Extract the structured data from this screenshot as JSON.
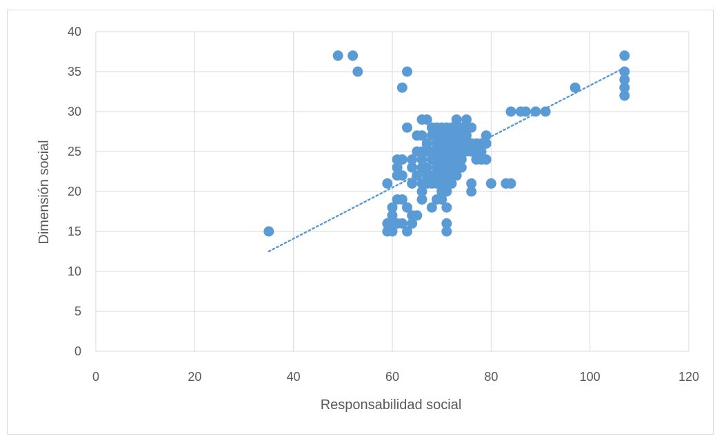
{
  "chart_data": {
    "type": "scatter",
    "title": "",
    "xlabel": "Responsabilidad social",
    "ylabel": "Dimensión social",
    "xlim": [
      0,
      120
    ],
    "ylim": [
      0,
      40
    ],
    "xticks": [
      0,
      20,
      40,
      60,
      80,
      100,
      120
    ],
    "yticks": [
      0,
      5,
      10,
      15,
      20,
      25,
      30,
      35,
      40
    ],
    "grid": true,
    "legend": "none",
    "marker_color": "#5b9bd5",
    "gridline_color": "#d9d9d9",
    "trendline": {
      "type": "linear",
      "style": "dotted",
      "x": [
        35,
        107
      ],
      "y": [
        12.5,
        35.5
      ]
    },
    "series": [
      {
        "points": [
          [
            35,
            15
          ],
          [
            49,
            37
          ],
          [
            52,
            37
          ],
          [
            53,
            35
          ],
          [
            62,
            33
          ],
          [
            63,
            35
          ],
          [
            59,
            21
          ],
          [
            59,
            16
          ],
          [
            59,
            15
          ],
          [
            60,
            15
          ],
          [
            60,
            16
          ],
          [
            60,
            17
          ],
          [
            60,
            18
          ],
          [
            61,
            19
          ],
          [
            62,
            19
          ],
          [
            62,
            16
          ],
          [
            61,
            16
          ],
          [
            63,
            15
          ],
          [
            63,
            18
          ],
          [
            64,
            17
          ],
          [
            65,
            17
          ],
          [
            64,
            16
          ],
          [
            61,
            22
          ],
          [
            61,
            23
          ],
          [
            61,
            24
          ],
          [
            62,
            22
          ],
          [
            62,
            24
          ],
          [
            63,
            28
          ],
          [
            64,
            21
          ],
          [
            64,
            23
          ],
          [
            64,
            24
          ],
          [
            65,
            22
          ],
          [
            65,
            25
          ],
          [
            65,
            27
          ],
          [
            66,
            19
          ],
          [
            66,
            20
          ],
          [
            66,
            21
          ],
          [
            66,
            23
          ],
          [
            66,
            24
          ],
          [
            66,
            25
          ],
          [
            66,
            27
          ],
          [
            66,
            29
          ],
          [
            67,
            21
          ],
          [
            67,
            22
          ],
          [
            67,
            23
          ],
          [
            67,
            25
          ],
          [
            67,
            26
          ],
          [
            67,
            29
          ],
          [
            68,
            18
          ],
          [
            68,
            21
          ],
          [
            68,
            22
          ],
          [
            68,
            24
          ],
          [
            68,
            25
          ],
          [
            68,
            27
          ],
          [
            68,
            28
          ],
          [
            69,
            19
          ],
          [
            69,
            21
          ],
          [
            69,
            22
          ],
          [
            69,
            23
          ],
          [
            69,
            24
          ],
          [
            69,
            25
          ],
          [
            69,
            26
          ],
          [
            69,
            27
          ],
          [
            69,
            28
          ],
          [
            70,
            19
          ],
          [
            70,
            20
          ],
          [
            70,
            21
          ],
          [
            70,
            22
          ],
          [
            70,
            23
          ],
          [
            70,
            24
          ],
          [
            70,
            25
          ],
          [
            70,
            26
          ],
          [
            70,
            27
          ],
          [
            70,
            28
          ],
          [
            71,
            15
          ],
          [
            71,
            16
          ],
          [
            71,
            18
          ],
          [
            71,
            20
          ],
          [
            71,
            21
          ],
          [
            71,
            22
          ],
          [
            71,
            23
          ],
          [
            71,
            24
          ],
          [
            71,
            25
          ],
          [
            71,
            26
          ],
          [
            71,
            27
          ],
          [
            71,
            28
          ],
          [
            72,
            21
          ],
          [
            72,
            22
          ],
          [
            72,
            23
          ],
          [
            72,
            24
          ],
          [
            72,
            25
          ],
          [
            72,
            26
          ],
          [
            72,
            27
          ],
          [
            72,
            28
          ],
          [
            73,
            22
          ],
          [
            73,
            23
          ],
          [
            73,
            24
          ],
          [
            73,
            25
          ],
          [
            73,
            26
          ],
          [
            73,
            27
          ],
          [
            73,
            28
          ],
          [
            73,
            29
          ],
          [
            74,
            23
          ],
          [
            74,
            24
          ],
          [
            74,
            25
          ],
          [
            74,
            26
          ],
          [
            74,
            27
          ],
          [
            74,
            28
          ],
          [
            75,
            25
          ],
          [
            75,
            26
          ],
          [
            75,
            27
          ],
          [
            75,
            28
          ],
          [
            75,
            29
          ],
          [
            76,
            20
          ],
          [
            76,
            21
          ],
          [
            76,
            25
          ],
          [
            76,
            26
          ],
          [
            76,
            28
          ],
          [
            77,
            24
          ],
          [
            77,
            25
          ],
          [
            77,
            26
          ],
          [
            78,
            24
          ],
          [
            78,
            25
          ],
          [
            78,
            26
          ],
          [
            79,
            24
          ],
          [
            79,
            26
          ],
          [
            79,
            27
          ],
          [
            80,
            21
          ],
          [
            83,
            21
          ],
          [
            84,
            21
          ],
          [
            84,
            30
          ],
          [
            86,
            30
          ],
          [
            87,
            30
          ],
          [
            89,
            30
          ],
          [
            91,
            30
          ],
          [
            97,
            33
          ],
          [
            107,
            32
          ],
          [
            107,
            33
          ],
          [
            107,
            34
          ],
          [
            107,
            35
          ],
          [
            107,
            37
          ]
        ]
      }
    ]
  }
}
